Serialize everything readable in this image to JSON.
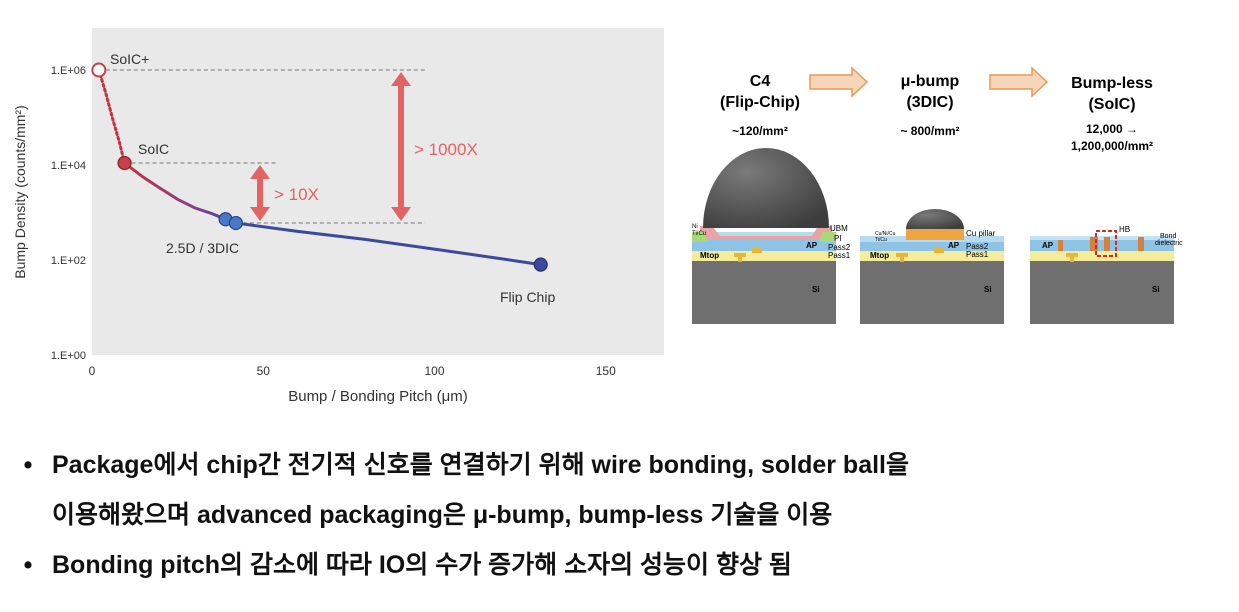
{
  "colors": {
    "plot_bg": "#e9e9e9",
    "line": "#3b4a9c",
    "line_mid": "#8a3f8a",
    "red_curve": "#c4333f",
    "arrow": "#e06464",
    "marker_blue": "#4a78c8",
    "marker_red": "#c74048",
    "si": "#6f6f6f",
    "bump": "#555555"
  },
  "chart_data": {
    "type": "line",
    "xlabel": "Bump / Bonding Pitch (μm)",
    "ylabel": "Bump Density (counts/mm²)",
    "x_ticks": [
      0,
      50,
      100,
      150
    ],
    "y_tick_labels": [
      "1.E+00",
      "1.E+02",
      "1.E+04",
      "1.E+06"
    ],
    "y_ticks": [
      1,
      100,
      10000,
      1000000
    ],
    "y_scale": "log",
    "xlim": [
      0,
      167
    ],
    "ylim": [
      1,
      1000000
    ],
    "grid": false,
    "curve": [
      {
        "x": 2,
        "y": 1000000
      },
      {
        "x": 4,
        "y": 330000
      },
      {
        "x": 6,
        "y": 95000
      },
      {
        "x": 8,
        "y": 30000
      },
      {
        "x": 9.5,
        "y": 11000
      },
      {
        "x": 15,
        "y": 5500
      },
      {
        "x": 20,
        "y": 3200
      },
      {
        "x": 25,
        "y": 1900
      },
      {
        "x": 30,
        "y": 1250
      },
      {
        "x": 35,
        "y": 950
      },
      {
        "x": 39,
        "y": 720
      },
      {
        "x": 42,
        "y": 600
      },
      {
        "x": 60,
        "y": 400
      },
      {
        "x": 80,
        "y": 270
      },
      {
        "x": 100,
        "y": 170
      },
      {
        "x": 120,
        "y": 105
      },
      {
        "x": 131,
        "y": 80
      }
    ],
    "points": [
      {
        "label": "SoIC+",
        "x": 2,
        "y": 1000000
      },
      {
        "label": "SoIC",
        "x": 9.5,
        "y": 11000
      },
      {
        "label": "",
        "x": 39,
        "y": 720
      },
      {
        "label": "2.5D / 3DIC",
        "x": 42,
        "y": 600
      },
      {
        "label": "Flip Chip",
        "x": 131,
        "y": 80
      }
    ],
    "annotations": [
      "> 10X",
      "> 1000X"
    ]
  },
  "diagram": {
    "stages": [
      {
        "title": "C4",
        "subtitle": "(Flip-Chip)",
        "density": "~120/mm²"
      },
      {
        "title": "μ-bump",
        "subtitle": "(3DIC)",
        "density": "~ 800/mm²"
      },
      {
        "title": "Bump-less",
        "subtitle": "(SoIC)",
        "density": "12,000 →",
        "density2": "1,200,000/mm²"
      }
    ],
    "labels": {
      "ubm": "UBM",
      "pi": "PI",
      "ni": "Ni",
      "tic": "Ti/Cu",
      "ap": "AP",
      "pass2": "Pass2",
      "pass1": "Pass1",
      "mtop": "Mtop",
      "si": "Si",
      "cu_pillar": "Cu pillar",
      "cunicu": "Cu/Ni/Cu",
      "tic2": "Ti/Cu",
      "hb": "HB",
      "bond": "Bond",
      "dielectric": "dielectric"
    }
  },
  "bullets": [
    "Package에서 chip간 전기적 신호를 연결하기 위해 wire bonding, solder ball을",
    "이용해왔으며 advanced packaging은 μ-bump, bump-less 기술을 이용",
    "Bonding pitch의 감소에 따라 IO의 수가 증가해 소자의 성능이 향상 됨"
  ],
  "bullet_symbol": "•"
}
